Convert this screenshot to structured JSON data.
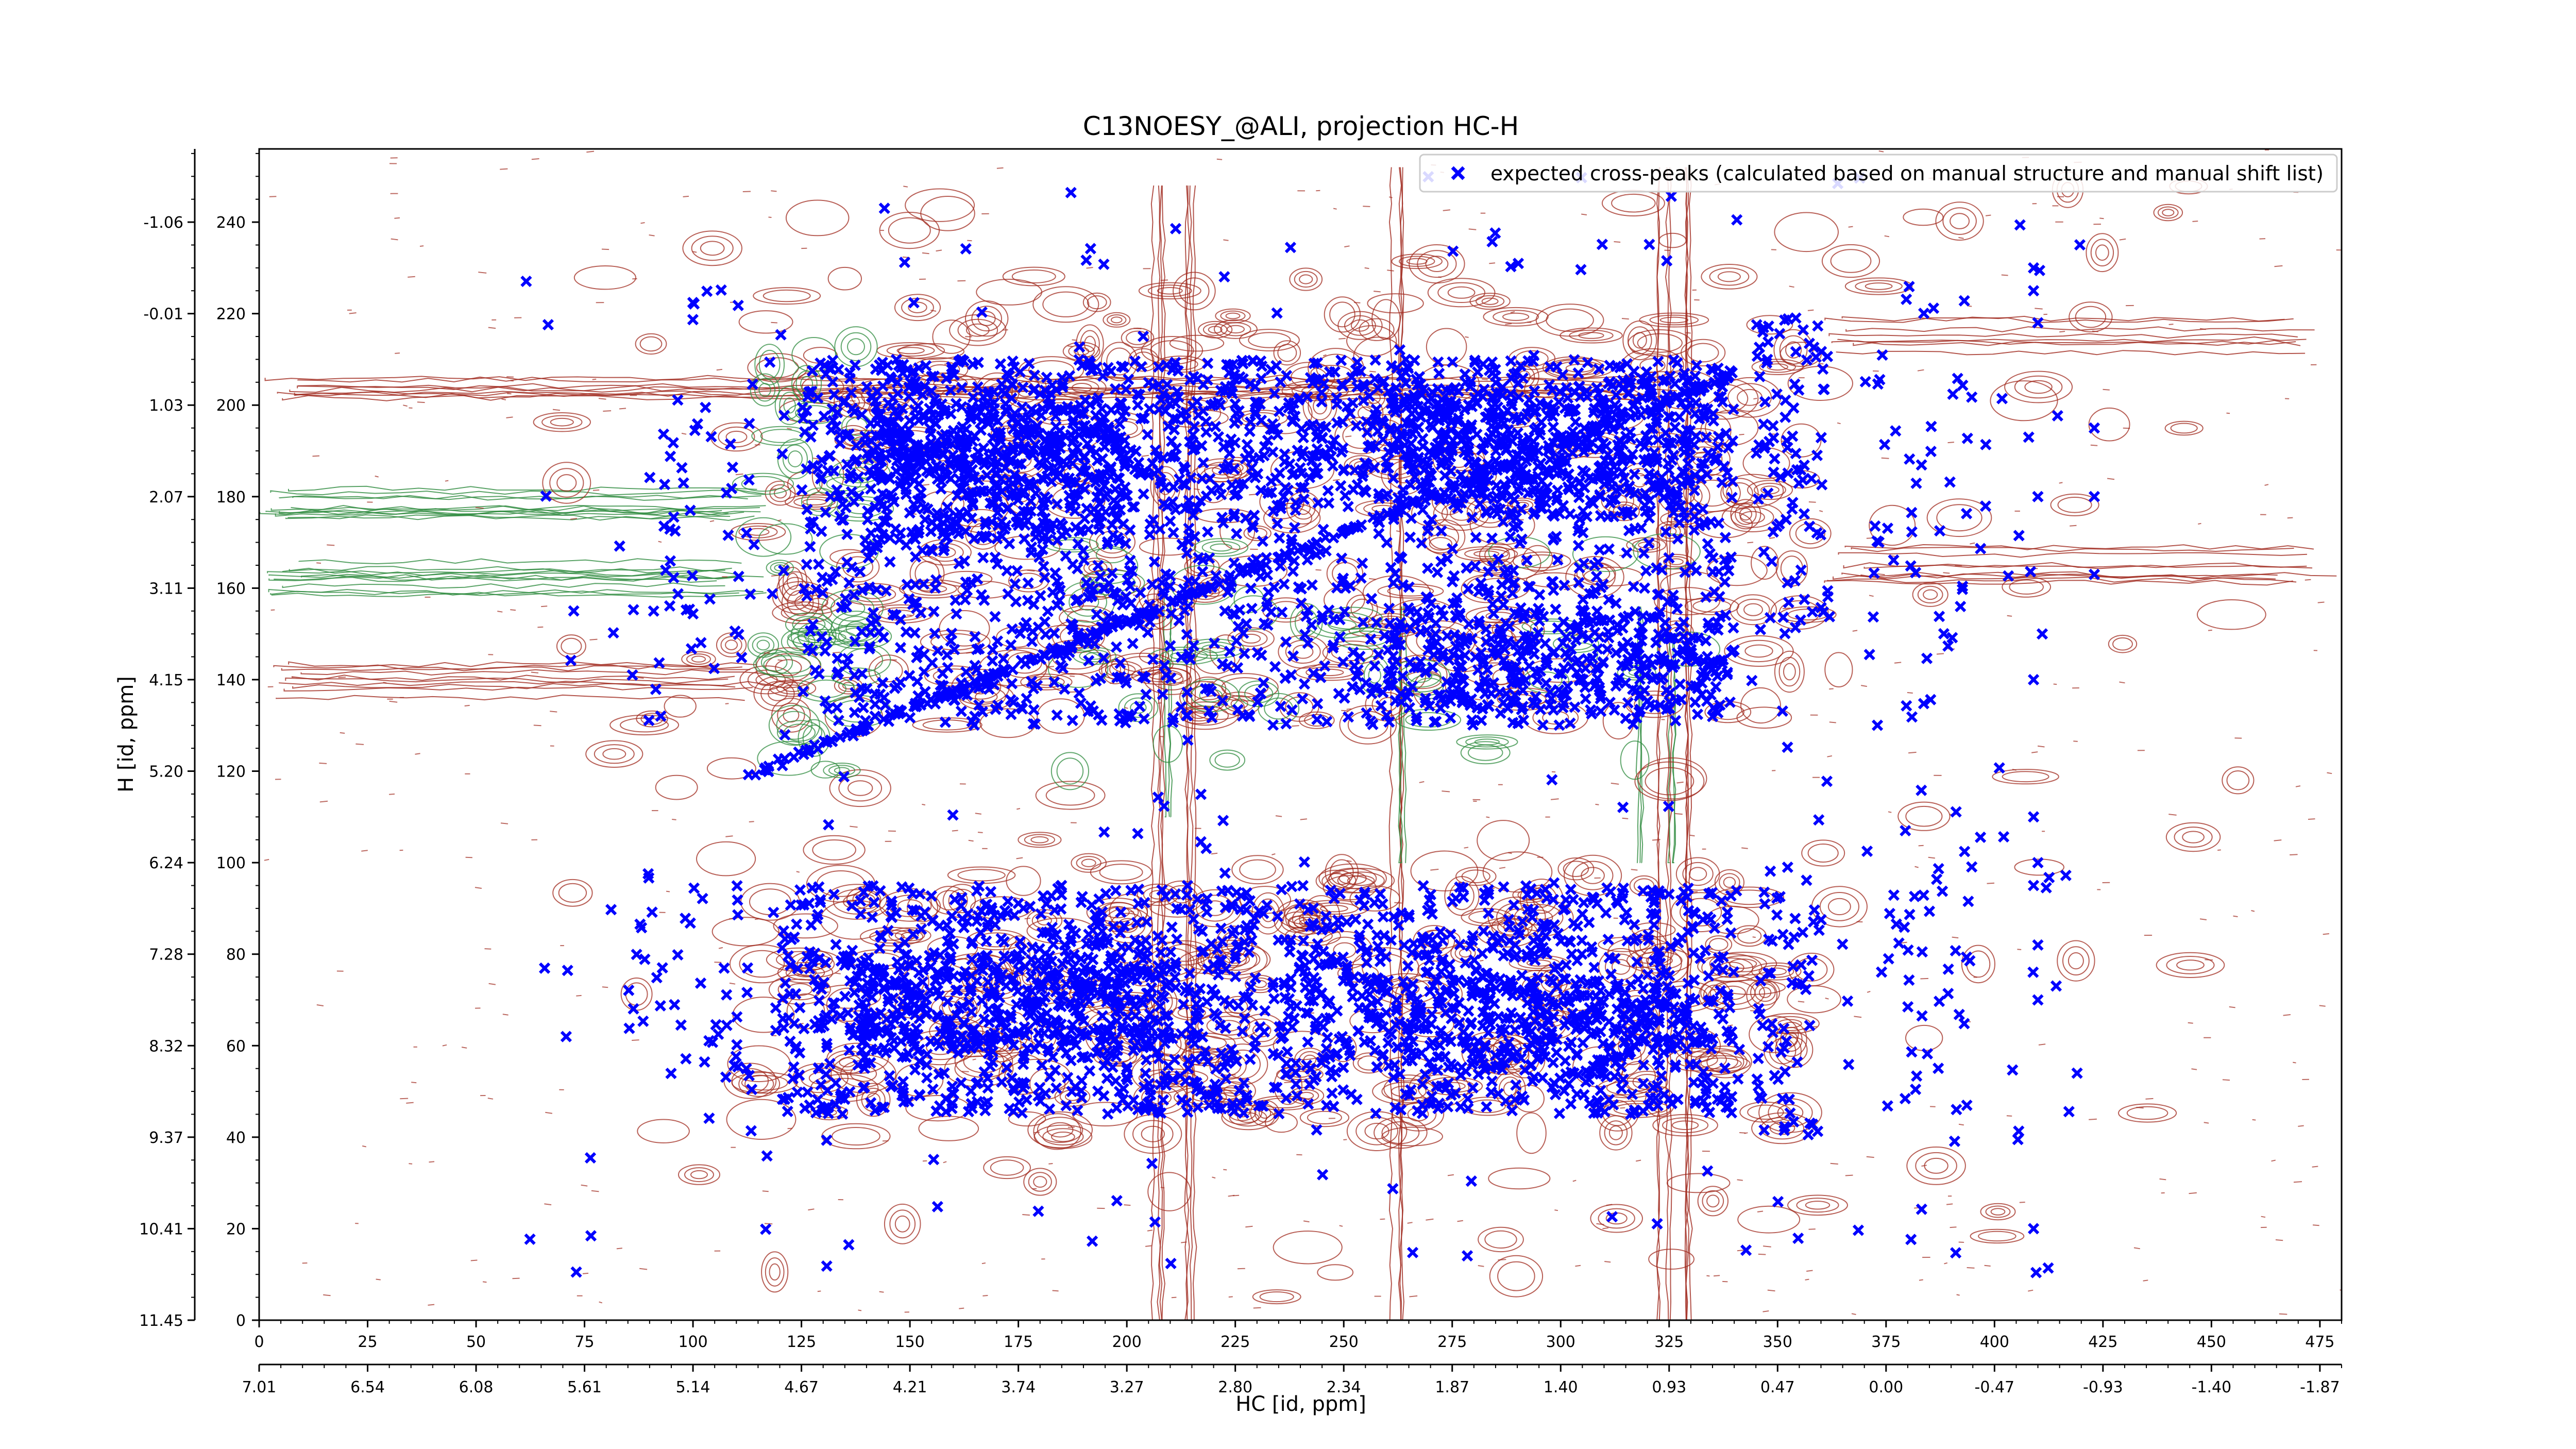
{
  "chart_data": {
    "type": "scatter",
    "title": "C13NOESY_@ALI, projection HC-H",
    "xlabel": "HC [id, ppm]",
    "ylabel": "H [id, ppm]",
    "xlim": [
      0,
      480
    ],
    "ylim": [
      0,
      256
    ],
    "x_ticks": [
      0,
      25,
      50,
      75,
      100,
      125,
      150,
      175,
      200,
      225,
      250,
      275,
      300,
      325,
      350,
      375,
      400,
      425,
      450,
      475
    ],
    "y_ticks": [
      0,
      20,
      40,
      60,
      80,
      100,
      120,
      140,
      160,
      180,
      200,
      220,
      240
    ],
    "secondary_x_axis": {
      "labels": [
        "7.01",
        "6.54",
        "6.08",
        "5.61",
        "5.14",
        "4.67",
        "4.21",
        "3.74",
        "3.27",
        "2.80",
        "2.34",
        "1.87",
        "1.40",
        "0.93",
        "0.47",
        "0.00",
        "-0.47",
        "-0.93",
        "-1.40",
        "-1.87"
      ]
    },
    "secondary_y_axis": {
      "labels": [
        "11.45",
        "10.41",
        "9.37",
        "8.32",
        "7.28",
        "6.24",
        "5.20",
        "4.15",
        "3.11",
        "2.07",
        "1.03",
        "-0.01",
        "-1.06"
      ]
    },
    "grid": false,
    "legend_position": "top-right",
    "series": [
      {
        "name": "expected cross-peaks (calculated based on manual structure and manual shift list)",
        "color": "#0000ff",
        "marker": "x",
        "description_clusters": [
          {
            "region": "upper band",
            "x_range": [
              125,
              340
            ],
            "y_range": [
              130,
              210
            ],
            "density": "very dense"
          },
          {
            "region": "lower band",
            "x_range": [
              120,
              340
            ],
            "y_range": [
              45,
              95
            ],
            "density": "very dense"
          },
          {
            "region": "diagonal",
            "x_from": [
              110,
              118
            ],
            "x_to": [
              340,
              207
            ],
            "density": "line"
          },
          {
            "region": "scattered isolated",
            "x_range": [
              60,
              420
            ],
            "y_range": [
              15,
              245
            ],
            "density": "sparse"
          }
        ]
      }
    ],
    "contours": {
      "positive_color": "#a0291e",
      "negative_color": "#2e8b3e"
    }
  }
}
